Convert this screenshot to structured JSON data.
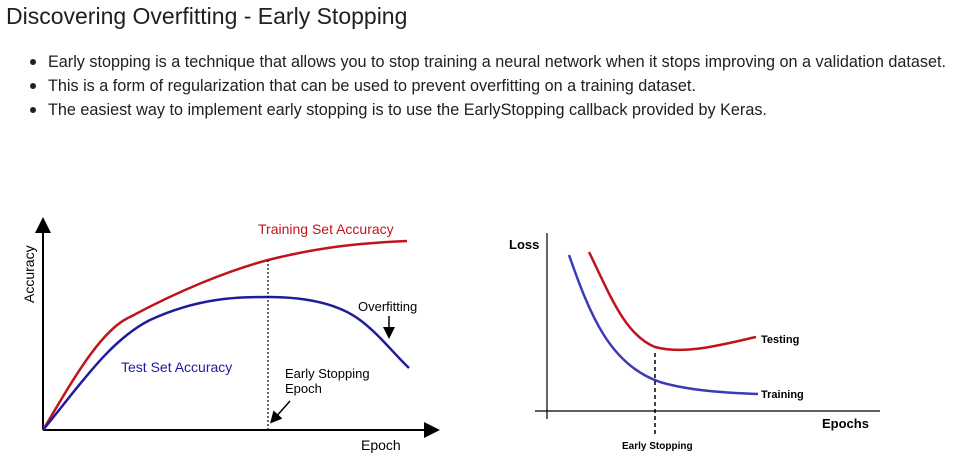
{
  "slide": {
    "title": "Discovering Overfitting - Early Stopping",
    "bullets": [
      "Early stopping is a technique that allows you to stop training a neural network when it stops improving on a validation dataset.",
      "This is a form of regularization that can be used to prevent overfitting on a training dataset.",
      "The easiest way to implement early stopping is to use the EarlyStopping callback provided by Keras."
    ]
  },
  "chart_data": [
    {
      "type": "line",
      "ylabel": "Accuracy",
      "xlabel": "Epoch",
      "series": [
        {
          "name": "Training Set Accuracy",
          "color": "#c0141c"
        },
        {
          "name": "Test Set Accuracy",
          "color": "#1d1d9c"
        }
      ],
      "annotations": [
        "Overfitting",
        "Early Stopping\nEpoch"
      ],
      "annotation_lines": [
        "Early Stopping",
        "Epoch"
      ]
    },
    {
      "type": "line",
      "ylabel": "Loss",
      "xlabel": "Epochs",
      "series": [
        {
          "name": "Testing",
          "color": "#c0141c"
        },
        {
          "name": "Training",
          "color": "#3b3bb5"
        }
      ],
      "annotations": [
        "Early Stopping"
      ]
    }
  ]
}
